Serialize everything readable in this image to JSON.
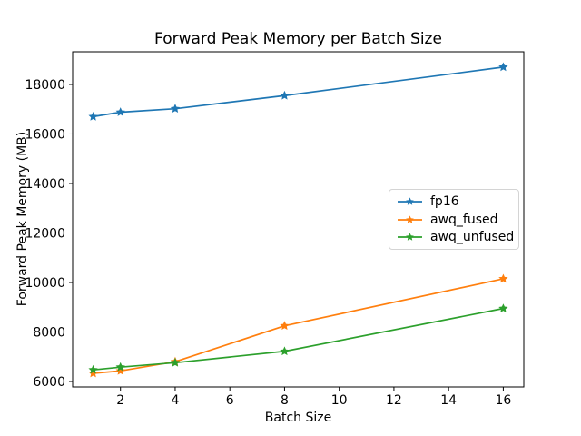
{
  "figure": {
    "title": "Forward Peak Memory per Batch Size",
    "xlabel": "Batch Size",
    "ylabel": "Forward Peak Memory (MB)"
  },
  "chart_data": {
    "type": "line",
    "title": "Forward Peak Memory per Batch Size",
    "xlabel": "Batch Size",
    "ylabel": "Forward Peak Memory (MB)",
    "x": [
      1,
      2,
      4,
      8,
      16
    ],
    "series": [
      {
        "name": "fp16",
        "color": "#1f77b4",
        "marker": "star",
        "values": [
          16700,
          16880,
          17020,
          17550,
          18700
        ]
      },
      {
        "name": "awq_fused",
        "color": "#ff7f0e",
        "marker": "star",
        "values": [
          6330,
          6430,
          6800,
          8250,
          10150
        ]
      },
      {
        "name": "awq_unfused",
        "color": "#2ca02c",
        "marker": "star",
        "values": [
          6470,
          6580,
          6760,
          7220,
          8950
        ]
      }
    ],
    "xticks": [
      2,
      4,
      6,
      8,
      10,
      12,
      14,
      16
    ],
    "yticks": [
      6000,
      8000,
      10000,
      12000,
      14000,
      16000,
      18000
    ],
    "xlim": [
      0.25,
      16.75
    ],
    "ylim": [
      5780,
      19320
    ],
    "grid": false,
    "legend": {
      "position": "center right",
      "entries": [
        "fp16",
        "awq_fused",
        "awq_unfused"
      ]
    }
  }
}
